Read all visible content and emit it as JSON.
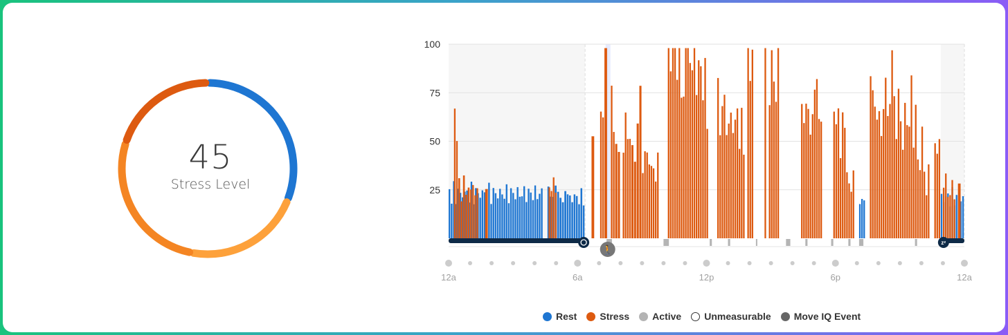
{
  "gauge": {
    "value": "45",
    "label": "Stress Level",
    "segments": [
      {
        "name": "rest",
        "fraction": 0.31,
        "color": "#1e76d2"
      },
      {
        "name": "low",
        "fraction": 0.22,
        "color": "#fda13b"
      },
      {
        "name": "medium",
        "fraction": 0.27,
        "color": "#f48523"
      },
      {
        "name": "high",
        "fraction": 0.2,
        "color": "#dd5a10"
      }
    ]
  },
  "chart_data": {
    "type": "bar",
    "x_unit": "hour",
    "xlim": [
      0,
      24
    ],
    "ylim": [
      0,
      100
    ],
    "yticks": [
      "25",
      "50",
      "75",
      "100"
    ],
    "xticks": [
      {
        "hour": 0,
        "label": "12a"
      },
      {
        "hour": 6,
        "label": "6a"
      },
      {
        "hour": 12,
        "label": "12p"
      },
      {
        "hour": 18,
        "label": "6p"
      },
      {
        "hour": 24,
        "label": "12a"
      }
    ],
    "colors": {
      "rest": "#1e76d2",
      "stress": "#dd5a10",
      "active": "#b4b4b4",
      "sleep_band": "#0e2a47"
    },
    "sleep_periods": [
      [
        0,
        6.35
      ],
      [
        22.9,
        24
      ]
    ],
    "series": [
      {
        "name": "Rest",
        "segments": [
          [
            0,
            4.4,
            23
          ],
          [
            4.6,
            5.05,
            23
          ],
          [
            5.05,
            5.5,
            21
          ],
          [
            5.5,
            6.35,
            21
          ],
          [
            19.1,
            19.4,
            19
          ],
          [
            22.9,
            24,
            21
          ]
        ]
      },
      {
        "name": "Stress",
        "segments": [
          [
            0.25,
            0.45,
            55
          ],
          [
            0.45,
            1.0,
            26
          ],
          [
            1.0,
            1.4,
            25
          ],
          [
            1.7,
            1.85,
            25
          ],
          [
            4.65,
            5.05,
            27
          ],
          [
            6.65,
            6.8,
            45
          ],
          [
            7.05,
            7.25,
            60
          ],
          [
            7.25,
            7.4,
            80
          ],
          [
            7.55,
            7.75,
            65
          ],
          [
            7.75,
            8.0,
            50
          ],
          [
            8.1,
            8.5,
            55
          ],
          [
            8.5,
            8.75,
            45
          ],
          [
            8.75,
            9.0,
            65
          ],
          [
            9.0,
            9.4,
            42
          ],
          [
            9.4,
            9.8,
            35
          ],
          [
            10.2,
            10.6,
            96
          ],
          [
            10.6,
            10.9,
            92
          ],
          [
            10.9,
            11.1,
            85
          ],
          [
            11.1,
            11.5,
            95
          ],
          [
            11.5,
            11.9,
            85
          ],
          [
            11.9,
            12.1,
            75
          ],
          [
            12.5,
            12.8,
            65
          ],
          [
            12.8,
            13.2,
            60
          ],
          [
            13.2,
            13.6,
            60
          ],
          [
            13.6,
            13.8,
            55
          ],
          [
            13.9,
            14.2,
            95
          ],
          [
            14.7,
            14.8,
            95
          ],
          [
            14.9,
            15.0,
            90
          ],
          [
            15.0,
            15.2,
            90
          ],
          [
            15.2,
            15.4,
            90
          ],
          [
            16.4,
            16.7,
            66
          ],
          [
            16.7,
            16.9,
            60
          ],
          [
            16.9,
            17.2,
            75
          ],
          [
            17.2,
            17.4,
            65
          ],
          [
            17.9,
            18.1,
            58
          ],
          [
            18.1,
            18.4,
            55
          ],
          [
            18.4,
            18.6,
            45
          ],
          [
            18.6,
            18.9,
            28
          ],
          [
            19.6,
            19.9,
            75
          ],
          [
            19.9,
            20.2,
            60
          ],
          [
            20.2,
            20.5,
            72
          ],
          [
            20.5,
            20.8,
            82
          ],
          [
            20.8,
            21.1,
            65
          ],
          [
            21.1,
            21.4,
            60
          ],
          [
            21.4,
            21.6,
            75
          ],
          [
            21.6,
            21.9,
            55
          ],
          [
            21.9,
            22.2,
            45
          ],
          [
            22.2,
            22.4,
            30
          ],
          [
            22.6,
            22.9,
            48
          ],
          [
            23.0,
            23.3,
            28
          ],
          [
            23.3,
            23.6,
            25
          ],
          [
            23.7,
            23.85,
            28
          ]
        ]
      }
    ],
    "active_periods": [
      [
        7.35,
        7.6
      ],
      [
        10.0,
        10.25
      ],
      [
        12.15,
        12.25
      ],
      [
        13.0,
        13.1
      ],
      [
        14.3,
        14.35
      ],
      [
        15.7,
        15.9
      ],
      [
        16.6,
        16.7
      ],
      [
        17.8,
        17.9
      ],
      [
        18.6,
        18.7
      ],
      [
        19.1,
        19.3
      ],
      [
        21.7,
        21.8
      ]
    ],
    "move_iq_hour": 7.4,
    "legend": [
      {
        "key": "rest",
        "label": "Rest",
        "color": "#1e76d2",
        "filled": true
      },
      {
        "key": "stress",
        "label": "Stress",
        "color": "#dd5a10",
        "filled": true
      },
      {
        "key": "active",
        "label": "Active",
        "color": "#b4b4b4",
        "filled": true
      },
      {
        "key": "unmeasurable",
        "label": "Unmeasurable",
        "color": "#333333",
        "filled": false
      },
      {
        "key": "moveiq",
        "label": "Move IQ Event",
        "color": "#666666",
        "filled": true
      }
    ]
  }
}
